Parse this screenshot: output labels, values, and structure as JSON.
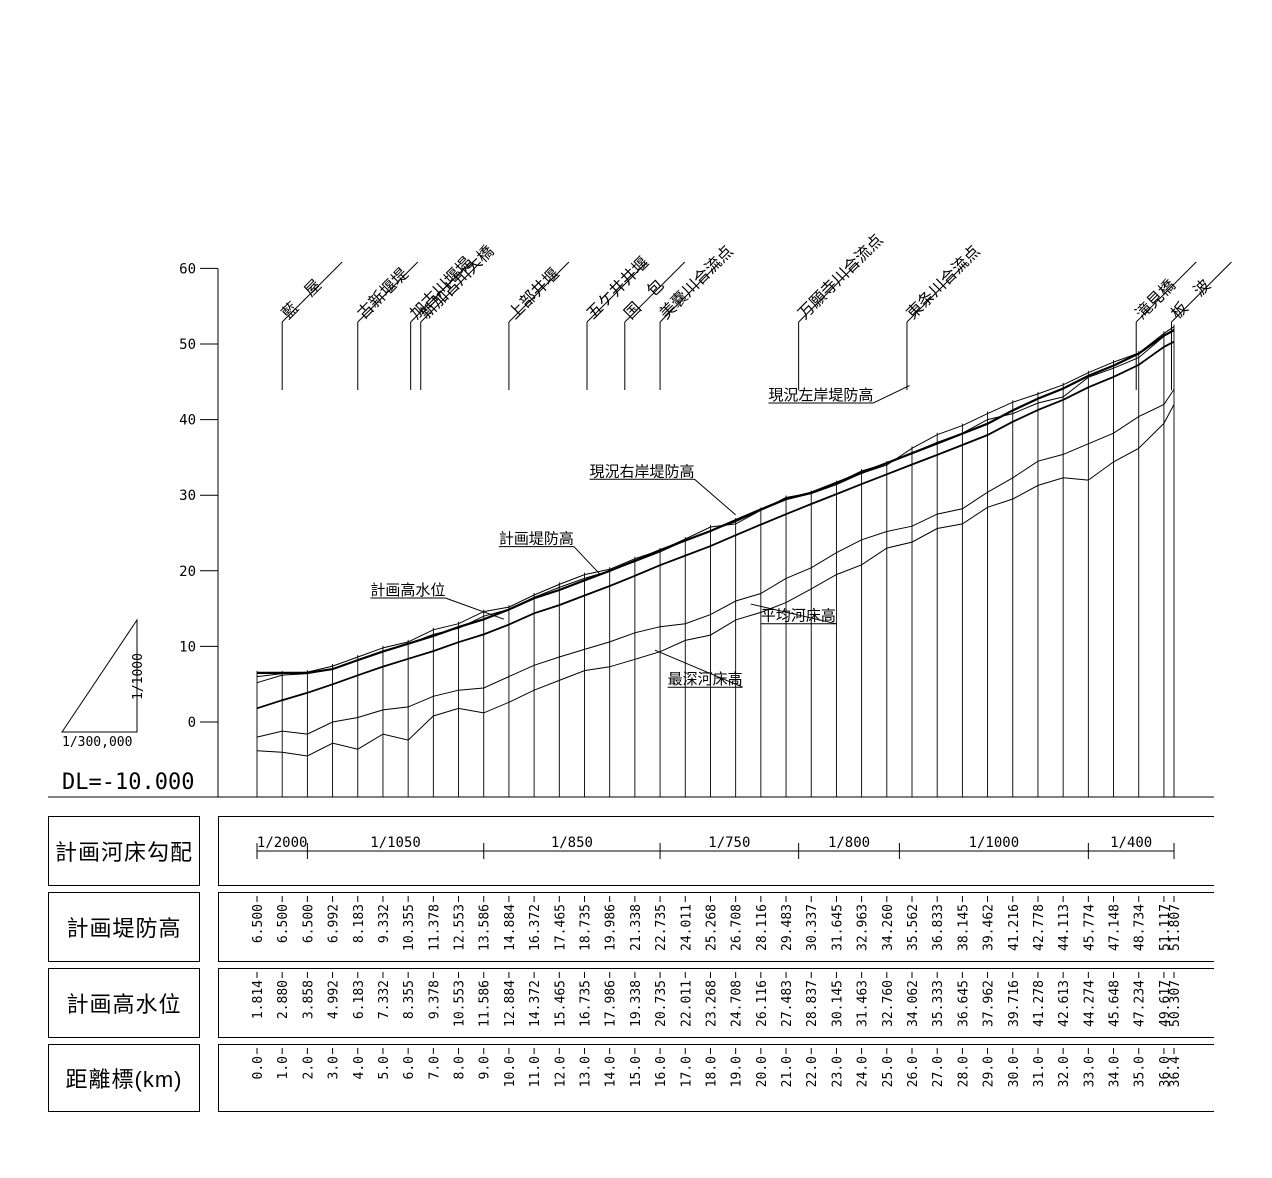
{
  "chart_data": {
    "type": "line",
    "ylim": [
      -10,
      60
    ],
    "yticks": [
      0,
      10,
      20,
      30,
      40,
      50,
      60
    ],
    "xlim": [
      0,
      36.4
    ],
    "datum_label": "DL=-10.000",
    "vertical_scale": "1/1000",
    "horizontal_scale": "1/300,000",
    "landmarks": [
      {
        "label": "藍　屋",
        "km": 1.0
      },
      {
        "label": "古新堰堤",
        "km": 4.0
      },
      {
        "label": "加古川堰堤",
        "km": 6.1
      },
      {
        "label": "新加古川大橋",
        "km": 6.5
      },
      {
        "label": "上部井堰",
        "km": 10.0
      },
      {
        "label": "五ケ井井堰",
        "km": 13.1
      },
      {
        "label": "国　包",
        "km": 14.6
      },
      {
        "label": "美嚢川合流点",
        "km": 16.0
      },
      {
        "label": "万願寺川合流点",
        "km": 21.5
      },
      {
        "label": "東条川合流点",
        "km": 25.8
      },
      {
        "label": "滝見橋",
        "km": 34.9
      },
      {
        "label": "板　波",
        "km": 36.3
      }
    ],
    "annotations": [
      {
        "label": "現況左岸堤防高",
        "at_km": 25.9,
        "at_y": 44.5,
        "text_km": 20.3,
        "text_y": 42.6
      },
      {
        "label": "現況右岸堤防高",
        "at_km": 19.0,
        "at_y": 27.4,
        "text_km": 13.2,
        "text_y": 32.5
      },
      {
        "label": "計画堤防高",
        "at_km": 13.6,
        "at_y": 19.6,
        "text_km": 9.6,
        "text_y": 23.6
      },
      {
        "label": "計画高水位",
        "at_km": 9.8,
        "at_y": 13.6,
        "text_km": 4.5,
        "text_y": 16.8
      },
      {
        "label": "平均河床高",
        "at_km": 19.6,
        "at_y": 15.6,
        "text_km": 20.0,
        "text_y": 13.4
      },
      {
        "label": "最深河床高",
        "at_km": 15.8,
        "at_y": 9.5,
        "text_km": 16.3,
        "text_y": 5.0
      }
    ],
    "series": [
      {
        "name": "計画堤防高",
        "x": [
          0,
          1,
          2,
          3,
          4,
          5,
          6,
          7,
          8,
          9,
          10,
          11,
          12,
          13,
          14,
          15,
          16,
          17,
          18,
          19,
          20,
          21,
          22,
          23,
          24,
          25,
          26,
          27,
          28,
          29,
          30,
          31,
          32,
          33,
          34,
          35,
          36,
          36.4
        ],
        "values": [
          6.5,
          6.5,
          6.5,
          6.992,
          8.183,
          9.332,
          10.355,
          11.378,
          12.553,
          13.586,
          14.884,
          16.372,
          17.465,
          18.735,
          19.986,
          21.338,
          22.735,
          24.011,
          25.268,
          26.708,
          28.116,
          29.483,
          30.337,
          31.645,
          32.963,
          34.26,
          35.562,
          36.833,
          38.145,
          39.462,
          41.216,
          42.778,
          44.113,
          45.774,
          47.148,
          48.734,
          51.117,
          51.807
        ]
      },
      {
        "name": "計画高水位",
        "x": [
          0,
          1,
          2,
          3,
          4,
          5,
          6,
          7,
          8,
          9,
          10,
          11,
          12,
          13,
          14,
          15,
          16,
          17,
          18,
          19,
          20,
          21,
          22,
          23,
          24,
          25,
          26,
          27,
          28,
          29,
          30,
          31,
          32,
          33,
          34,
          35,
          36,
          36.4
        ],
        "values": [
          1.814,
          2.88,
          3.858,
          4.992,
          6.183,
          7.332,
          8.355,
          9.378,
          10.553,
          11.586,
          12.884,
          14.372,
          15.465,
          16.735,
          17.986,
          19.338,
          20.735,
          22.011,
          23.268,
          24.708,
          26.116,
          27.483,
          28.837,
          30.145,
          31.463,
          32.76,
          34.062,
          35.333,
          36.645,
          37.962,
          39.716,
          41.278,
          42.613,
          44.274,
          45.648,
          47.234,
          49.617,
          50.307
        ]
      },
      {
        "name": "現況右岸堤防高",
        "x": [
          0,
          1,
          2,
          3,
          4,
          5,
          6,
          7,
          8,
          9,
          10,
          11,
          12,
          13,
          14,
          15,
          16,
          17,
          18,
          19,
          20,
          21,
          22,
          23,
          24,
          25,
          26,
          27,
          28,
          29,
          30,
          31,
          32,
          33,
          34,
          35,
          36,
          36.4
        ],
        "values": [
          6.0,
          6.4,
          6.6,
          7.4,
          8.6,
          9.8,
          10.6,
          12.2,
          13.0,
          14.6,
          15.2,
          16.8,
          18.2,
          19.5,
          20.2,
          21.6,
          22.7,
          24.2,
          25.8,
          26.2,
          28.0,
          29.7,
          30.3,
          31.6,
          33.2,
          34.2,
          35.6,
          37.0,
          38.2,
          40.0,
          40.8,
          42.2,
          43.0,
          45.6,
          46.8,
          48.2,
          51.0,
          52.0
        ]
      },
      {
        "name": "現況左岸堤防高",
        "x": [
          0,
          1,
          2,
          3,
          4,
          5,
          6,
          7,
          8,
          9,
          10,
          11,
          12,
          13,
          14,
          15,
          16,
          17,
          18,
          19,
          20,
          21,
          22,
          23,
          24,
          25,
          26,
          27,
          28,
          29,
          30,
          31,
          32,
          33,
          34,
          35,
          36,
          36.4
        ],
        "values": [
          5.2,
          6.2,
          6.4,
          7.0,
          8.2,
          9.4,
          10.3,
          11.6,
          12.4,
          14.0,
          14.9,
          16.5,
          17.8,
          19.0,
          20.0,
          21.2,
          22.5,
          24.0,
          25.3,
          26.5,
          28.0,
          29.4,
          30.2,
          31.4,
          32.9,
          34.0,
          36.2,
          38.0,
          39.2,
          40.8,
          42.3,
          43.4,
          44.6,
          46.2,
          47.6,
          48.8,
          51.4,
          52.3
        ]
      },
      {
        "name": "平均河床高",
        "x": [
          0,
          1,
          2,
          3,
          4,
          5,
          6,
          7,
          8,
          9,
          10,
          11,
          12,
          13,
          14,
          15,
          16,
          17,
          18,
          19,
          20,
          21,
          22,
          23,
          24,
          25,
          26,
          27,
          28,
          29,
          30,
          31,
          32,
          33,
          34,
          35,
          36,
          36.4
        ],
        "values": [
          -2.0,
          -1.2,
          -1.6,
          0.0,
          0.6,
          1.6,
          2.0,
          3.4,
          4.2,
          4.5,
          6.0,
          7.5,
          8.6,
          9.6,
          10.6,
          11.8,
          12.6,
          13.0,
          14.2,
          16.0,
          17.0,
          19.0,
          20.4,
          22.4,
          24.1,
          25.2,
          25.9,
          27.5,
          28.2,
          30.4,
          32.3,
          34.5,
          35.4,
          36.8,
          38.2,
          40.4,
          42.0,
          44.0
        ]
      },
      {
        "name": "最深河床高",
        "x": [
          0,
          1,
          2,
          3,
          4,
          5,
          6,
          7,
          8,
          9,
          10,
          11,
          12,
          13,
          14,
          15,
          16,
          17,
          18,
          19,
          20,
          21,
          22,
          23,
          24,
          25,
          26,
          27,
          28,
          29,
          30,
          31,
          32,
          33,
          34,
          35,
          36,
          36.4
        ],
        "values": [
          -3.8,
          -4.0,
          -4.5,
          -2.8,
          -3.6,
          -1.6,
          -2.4,
          0.8,
          1.8,
          1.2,
          2.6,
          4.2,
          5.5,
          6.8,
          7.3,
          8.3,
          9.3,
          10.8,
          11.5,
          13.5,
          14.5,
          15.8,
          17.6,
          19.5,
          20.8,
          23.0,
          23.8,
          25.6,
          26.2,
          28.4,
          29.5,
          31.3,
          32.3,
          32.0,
          34.4,
          36.2,
          39.5,
          42.0
        ]
      }
    ]
  },
  "table": {
    "rows": [
      {
        "label": "計画河床勾配"
      },
      {
        "label": "計画堤防高"
      },
      {
        "label": "計画高水位"
      },
      {
        "label": "距離標(km)"
      }
    ],
    "gradient_breaks": [
      0,
      2,
      9,
      16,
      21.5,
      25.5,
      33,
      36.4
    ],
    "gradient_labels": [
      "1/2000",
      "1/1050",
      "1/850",
      "1/750",
      "1/800",
      "1/1000",
      "1/400"
    ],
    "dike_height": [
      "6.500",
      "6.500",
      "6.500",
      "6.992",
      "8.183",
      "9.332",
      "10.355",
      "11.378",
      "12.553",
      "13.586",
      "14.884",
      "16.372",
      "17.465",
      "18.735",
      "19.986",
      "21.338",
      "22.735",
      "24.011",
      "25.268",
      "26.708",
      "28.116",
      "29.483",
      "30.337",
      "31.645",
      "32.963",
      "34.260",
      "35.562",
      "36.833",
      "38.145",
      "39.462",
      "41.216",
      "42.778",
      "44.113",
      "45.774",
      "47.148",
      "48.734",
      "51.117",
      "51.807"
    ],
    "high_water": [
      "1.814",
      "2.880",
      "3.858",
      "4.992",
      "6.183",
      "7.332",
      "8.355",
      "9.378",
      "10.553",
      "11.586",
      "12.884",
      "14.372",
      "15.465",
      "16.735",
      "17.986",
      "19.338",
      "20.735",
      "22.011",
      "23.268",
      "24.708",
      "26.116",
      "27.483",
      "28.837",
      "30.145",
      "31.463",
      "32.760",
      "34.062",
      "35.333",
      "36.645",
      "37.962",
      "39.716",
      "41.278",
      "42.613",
      "44.274",
      "45.648",
      "47.234",
      "49.617",
      "50.307"
    ],
    "distance": [
      "0.0",
      "1.0",
      "2.0",
      "3.0",
      "4.0",
      "5.0",
      "6.0",
      "7.0",
      "8.0",
      "9.0",
      "10.0",
      "11.0",
      "12.0",
      "13.0",
      "14.0",
      "15.0",
      "16.0",
      "17.0",
      "18.0",
      "19.0",
      "20.0",
      "21.0",
      "22.0",
      "23.0",
      "24.0",
      "25.0",
      "26.0",
      "27.0",
      "28.0",
      "29.0",
      "30.0",
      "31.0",
      "32.0",
      "33.0",
      "34.0",
      "35.0",
      "36.0",
      "36.4"
    ]
  }
}
